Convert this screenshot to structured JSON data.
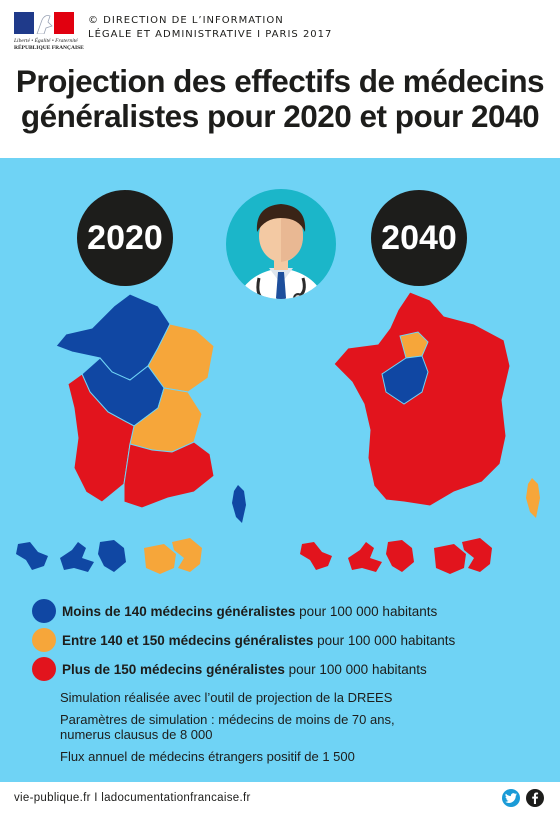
{
  "header": {
    "republic_text": "Liberté • Égalité • Fraternité",
    "republic_name": "RÉPUBLIQUE FRANÇAISE",
    "org_line1": "© DIRECTION DE L’INFORMATION",
    "org_line2": "LÉGALE ET ADMINISTRATIVE I PARIS 2017",
    "title_line1": "Projection des effectifs de médecins",
    "title_line2": "généralistes pour 2020 et pour 2040"
  },
  "years": {
    "left": "2020",
    "right": "2040"
  },
  "colors": {
    "background": "#6fd3f5",
    "blue": "#1047a3",
    "orange": "#f6a63a",
    "red": "#e2141d",
    "dark": "#1d1d1b"
  },
  "legend": [
    {
      "bold": "Moins de 140 médecins généralistes",
      "rest": " pour 100 000 habitants",
      "color": "#1047a3"
    },
    {
      "bold": "Entre 140 et 150 médecins généralistes",
      "rest": " pour 100 000 habitants",
      "color": "#f6a63a"
    },
    {
      "bold": "Plus de 150 médecins généralistes",
      "rest": " pour 100 000 habitants",
      "color": "#e2141d"
    }
  ],
  "notes": {
    "line1": "Simulation réalisée avec l’outil de projection de la DREES",
    "line2": "Paramètres de simulation : médecins de moins de 70 ans,",
    "line3": "numerus clausus de 8 000",
    "line4": "Flux annuel de médecins étrangers positif de 1 500"
  },
  "footer": {
    "text": "vie-publique.fr I ladocumentationfrancaise.fr",
    "icons": [
      "twitter-icon",
      "facebook-icon"
    ]
  }
}
